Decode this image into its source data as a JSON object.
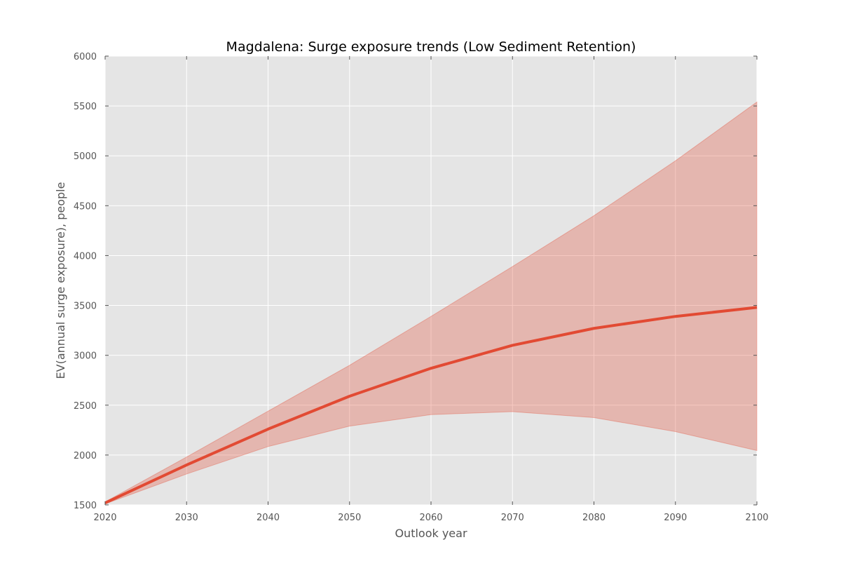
{
  "chart_data": {
    "type": "line",
    "title": "Magdalena: Surge exposure trends (Low Sediment Retention)",
    "xlabel": "Outlook year",
    "ylabel": "EV(annual surge exposure), people",
    "xlim": [
      2020,
      2100
    ],
    "ylim": [
      1500,
      6000
    ],
    "x_ticks": [
      2020,
      2030,
      2040,
      2050,
      2060,
      2070,
      2080,
      2090,
      2100
    ],
    "y_ticks": [
      1500,
      2000,
      2500,
      3000,
      3500,
      4000,
      4500,
      5000,
      5500,
      6000
    ],
    "grid": true,
    "legend": "none",
    "x": [
      2020,
      2030,
      2040,
      2050,
      2060,
      2070,
      2080,
      2090,
      2100
    ],
    "series": [
      {
        "values": [
          1520,
          1900,
          2260,
          2590,
          2870,
          3100,
          3270,
          3390,
          3480
        ],
        "band_lower": [
          1510,
          1810,
          2085,
          2290,
          2405,
          2435,
          2375,
          2235,
          2045
        ],
        "band_upper": [
          1530,
          1980,
          2440,
          2900,
          3390,
          3890,
          4400,
          4950,
          5540
        ],
        "color": "#e24a33"
      }
    ]
  }
}
